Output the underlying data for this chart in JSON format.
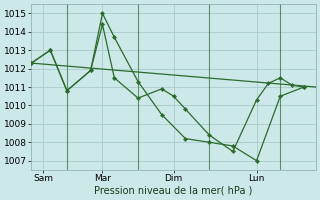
{
  "bg_color": "#cce8e8",
  "grid_color": "#aacccc",
  "line_color": "#2d6b2d",
  "xlabel": "Pression niveau de la mer( hPa )",
  "ylim": [
    1006.5,
    1015.5
  ],
  "yticks": [
    1007,
    1008,
    1009,
    1010,
    1011,
    1012,
    1013,
    1014,
    1015
  ],
  "xlim": [
    0,
    12
  ],
  "xtick_positions": [
    0.5,
    3,
    6,
    9.5
  ],
  "xtick_labels": [
    "Sam",
    "Mar",
    "Dim",
    "Lun"
  ],
  "vline_positions": [
    1.5,
    4.5,
    7.5,
    10.5
  ],
  "trend_x": [
    0,
    12
  ],
  "trend_y": [
    1012.3,
    1011.0
  ],
  "line2_x": [
    0.0,
    0.8,
    1.5,
    2.5,
    3.0,
    3.5,
    4.5,
    5.5,
    6.5,
    7.5,
    8.5,
    9.5,
    10.5,
    11.5
  ],
  "line2_y": [
    1012.3,
    1013.0,
    1010.8,
    1011.9,
    1015.0,
    1013.7,
    1011.3,
    1009.5,
    1008.2,
    1008.0,
    1007.8,
    1007.0,
    1010.5,
    1011.0
  ],
  "line3_x": [
    0.0,
    0.8,
    1.5,
    2.5,
    3.0,
    3.5,
    4.5,
    5.5,
    6.0,
    6.5,
    7.5,
    8.5,
    9.5,
    10.0,
    10.5,
    11.0,
    11.5
  ],
  "line3_y": [
    1012.3,
    1013.0,
    1010.8,
    1011.9,
    1014.4,
    1011.5,
    1010.4,
    1010.9,
    1010.5,
    1009.8,
    1008.4,
    1007.5,
    1010.3,
    1011.2,
    1011.5,
    1011.1,
    1011.0
  ]
}
